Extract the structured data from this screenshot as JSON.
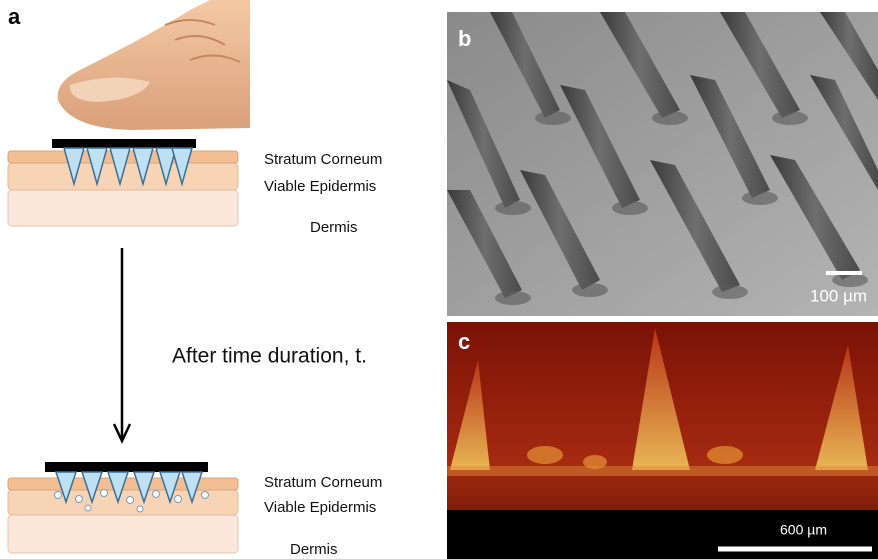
{
  "panels": [
    {
      "label": "a",
      "before": {
        "layers": [
          "Stratum Corneum",
          "Viable Epidermis",
          "Dermis"
        ]
      },
      "transition": "After time duration, t.",
      "after": {
        "layers": [
          "Stratum Corneum",
          "Viable Epidermis",
          "Dermis"
        ]
      }
    },
    {
      "label": "b",
      "scale_bar": "100 µm"
    },
    {
      "label": "c",
      "scale_bar": "600 µm"
    }
  ]
}
